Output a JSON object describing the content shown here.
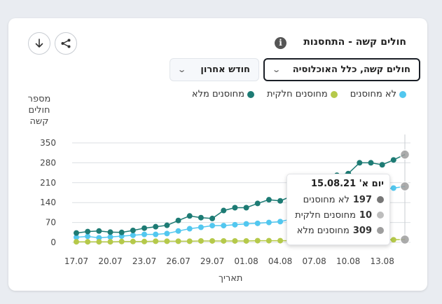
{
  "title": "חולים קשה - התחסנות",
  "info_icon": "i",
  "buttons": {
    "download_icon": "download-icon",
    "share_icon": "share-icon"
  },
  "selects": {
    "population": "חולים קשה, כלל האוכלוסיה",
    "period": "חודש אחרון"
  },
  "legend": {
    "unvaccinated": "לא מחוסנים",
    "partial": "מחוסנים חלקית",
    "full": "מחוסנים מלא"
  },
  "colors": {
    "unvaccinated": "#52c7ef",
    "partial": "#b5c94a",
    "full": "#1d7b74",
    "grid": "#dcdfe3",
    "marker": "#9e9e9e"
  },
  "y_axis_label": [
    "מספר",
    "חולים",
    "קשה"
  ],
  "x_axis_label": "תאריך",
  "tooltip": {
    "date": "יום א' 15.08.21",
    "rows": [
      {
        "value": "197",
        "label": "לא מחוסנים",
        "color": "#777777"
      },
      {
        "value": "10",
        "label": "מחוסנים חלקית",
        "color": "#bdbdbd"
      },
      {
        "value": "309",
        "label": "מחוסנים מלא",
        "color": "#9e9e9e"
      }
    ]
  },
  "chart_data": {
    "type": "line",
    "x": [
      "17.07",
      "18.07",
      "19.07",
      "20.07",
      "21.07",
      "22.07",
      "23.07",
      "24.07",
      "25.07",
      "26.07",
      "27.07",
      "28.07",
      "29.07",
      "30.07",
      "31.07",
      "01.08",
      "02.08",
      "03.08",
      "04.08",
      "05.08",
      "06.08",
      "07.08",
      "08.08",
      "09.08",
      "10.08",
      "11.08",
      "12.08",
      "13.08",
      "14.08",
      "15.08"
    ],
    "x_tick_labels": [
      "17.07",
      "20.07",
      "23.07",
      "26.07",
      "29.07",
      "01.08",
      "04.08",
      "07.08",
      "10.08",
      "13.08"
    ],
    "y_ticks": [
      0,
      70,
      140,
      210,
      280,
      350
    ],
    "ylim": [
      0,
      350
    ],
    "xlabel": "תאריך",
    "ylabel": "מספר חולים קשה",
    "series": [
      {
        "name": "לא מחוסנים",
        "key": "unvaccinated",
        "values": [
          18,
          21,
          16,
          19,
          22,
          25,
          28,
          28,
          31,
          40,
          48,
          53,
          59,
          59,
          62,
          65,
          67,
          70,
          73,
          82,
          95,
          105,
          120,
          140,
          160,
          172,
          180,
          186,
          191,
          197
        ]
      },
      {
        "name": "מחוסנים חלקית",
        "key": "partial",
        "values": [
          2,
          2,
          2,
          2,
          3,
          3,
          3,
          4,
          4,
          4,
          4,
          5,
          5,
          5,
          5,
          5,
          6,
          6,
          6,
          6,
          7,
          7,
          7,
          8,
          8,
          8,
          9,
          9,
          9,
          10
        ]
      },
      {
        "name": "מחוסנים מלא",
        "key": "full",
        "values": [
          33,
          38,
          40,
          36,
          35,
          42,
          50,
          55,
          60,
          77,
          93,
          87,
          84,
          112,
          122,
          122,
          137,
          150,
          146,
          163,
          180,
          200,
          216,
          236,
          242,
          280,
          280,
          273,
          290,
          309
        ]
      }
    ]
  }
}
